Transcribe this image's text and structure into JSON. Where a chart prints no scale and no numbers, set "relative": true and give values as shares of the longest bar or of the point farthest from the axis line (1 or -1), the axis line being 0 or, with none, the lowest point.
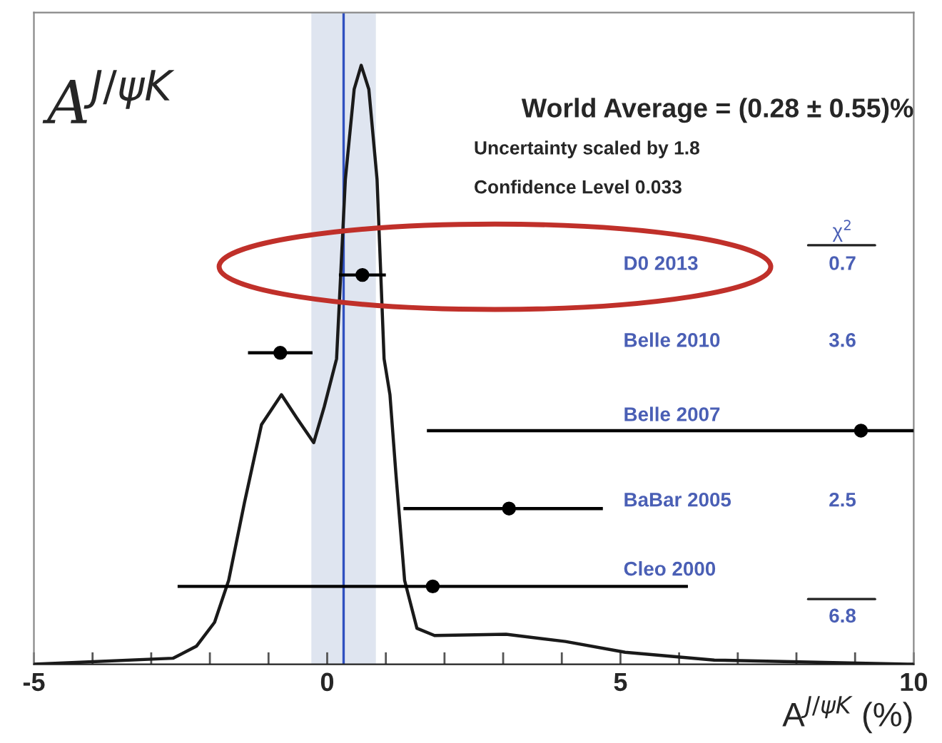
{
  "chart_data": {
    "type": "line",
    "relative": true,
    "xlabel": "A$^{J/ψK}$ (%)",
    "xlim": [
      -5,
      10
    ],
    "xticks": [
      -5,
      {
        "value": -4,
        "label": null
      },
      {
        "value": -3,
        "label": null
      },
      {
        "value": -2,
        "label": null
      },
      {
        "value": -1,
        "label": null
      },
      0,
      {
        "value": 1,
        "label": null
      },
      {
        "value": 2,
        "label": null
      },
      {
        "value": 3,
        "label": null
      },
      {
        "value": 4,
        "label": null
      },
      5,
      {
        "value": 6,
        "label": null
      },
      {
        "value": 7,
        "label": null
      },
      {
        "value": 8,
        "label": null
      },
      {
        "value": 9,
        "label": null
      },
      10
    ],
    "grid": false,
    "legend": false,
    "series": [
      {
        "color": "#1a1a1a",
        "x": [
          -5,
          -2.63,
          -2.23,
          -1.92,
          -1.68,
          -1.41,
          -1.12,
          -0.78,
          -0.51,
          -0.23,
          -0.05,
          0.16,
          0.31,
          0.46,
          0.58,
          0.71,
          0.85,
          0.97,
          1.07,
          1.17,
          1.32,
          1.53,
          1.83,
          3.05,
          4.06,
          5.08,
          6.6,
          9.94,
          10
        ],
        "values": [
          0,
          0.01,
          0.03,
          0.07,
          0.14,
          0.27,
          0.4,
          0.45,
          0.41,
          0.37,
          0.43,
          0.51,
          0.81,
          0.96,
          1.0,
          0.96,
          0.81,
          0.51,
          0.45,
          0.32,
          0.14,
          0.06,
          0.048,
          0.05,
          0.038,
          0.02,
          0.007,
          0,
          0
        ]
      },
      {
        "type": "scatter",
        "marker": "circle",
        "color": "#000000",
        "x": [
          0.6
        ],
        "values": [
          0.65
        ],
        "xerrors": [
          0.4
        ]
      },
      {
        "type": "scatter",
        "marker": "circle",
        "color": "#000000",
        "x": [
          -0.8
        ],
        "values": [
          0.52
        ],
        "xerrors": [
          0.55
        ]
      },
      {
        "type": "scatter",
        "marker": "circle",
        "color": "#000000",
        "x": [
          9.1
        ],
        "values": [
          0.39
        ],
        "xerrors": [
          [
            1.7,
            10
          ]
        ]
      },
      {
        "type": "scatter",
        "marker": "circle",
        "color": "#000000",
        "x": [
          3.1
        ],
        "values": [
          0.26
        ],
        "xerrors": [
          [
            1.3,
            4.7
          ]
        ]
      },
      {
        "type": "scatter",
        "marker": "circle",
        "color": "#000000",
        "x": [
          1.8
        ],
        "values": [
          0.13
        ],
        "xerrors": [
          4.35
        ]
      }
    ],
    "bands": [
      {
        "axis": "x",
        "from": -0.27,
        "to": 0.83,
        "color": "#dfe5f0"
      }
    ],
    "ref_lines": [
      {
        "axis": "x",
        "value": 0.28,
        "color": "#3050c0"
      }
    ],
    "annotations": [
      "A$^{J/ψK}$",
      "World Average = (0.28 ± 0.55)%",
      "Uncertainty scaled by 1.8",
      "Confidence Level 0.033",
      "χ$^{2}$",
      "0.7",
      "3.6",
      "2.5",
      "6.8",
      "D0 2013",
      "Belle 2010",
      "Belle 2007",
      "BaBar 2005",
      "Cleo 2000"
    ]
  }
}
